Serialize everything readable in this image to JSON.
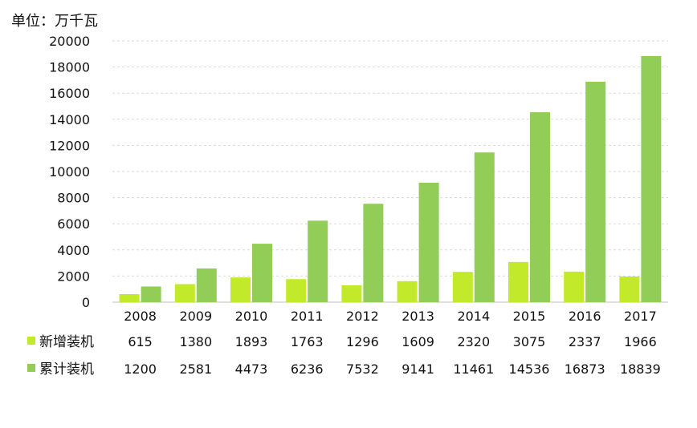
{
  "unit_label": "单位：万千瓦",
  "colors": {
    "new": "#c3ea2a",
    "cumulative": "#92cd58"
  },
  "chart_data": {
    "type": "bar",
    "title": "",
    "xlabel": "",
    "ylabel": "",
    "ylim": [
      0,
      20000
    ],
    "yticks": [
      0,
      2000,
      4000,
      6000,
      8000,
      10000,
      12000,
      14000,
      16000,
      18000,
      20000
    ],
    "grid": true,
    "legend": "bottom data table",
    "categories": [
      "2008",
      "2009",
      "2010",
      "2011",
      "2012",
      "2013",
      "2014",
      "2015",
      "2016",
      "2017"
    ],
    "series": [
      {
        "name": "新增装机",
        "values": [
          615,
          1380,
          1893,
          1763,
          1296,
          1609,
          2320,
          3075,
          2337,
          1966
        ]
      },
      {
        "name": "累计装机",
        "values": [
          1200,
          2581,
          4473,
          6236,
          7532,
          9141,
          11461,
          14536,
          16873,
          18839
        ]
      }
    ]
  }
}
